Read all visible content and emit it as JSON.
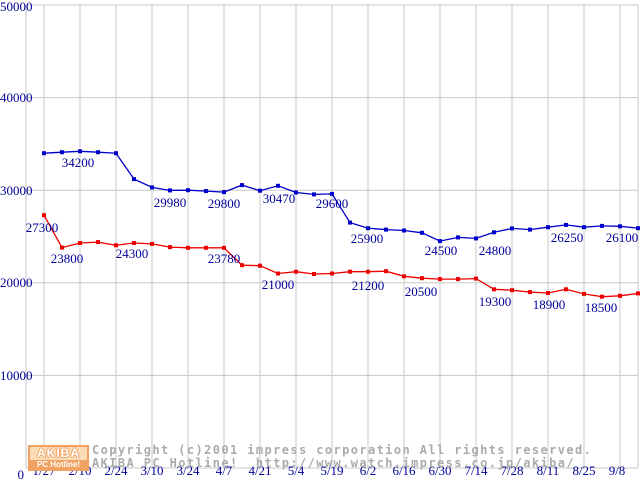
{
  "chart_data": {
    "type": "line",
    "title": "",
    "xlabel": "",
    "ylabel": "",
    "ylim": [
      0,
      50000
    ],
    "y_ticks": [
      0,
      10000,
      20000,
      30000,
      40000,
      50000
    ],
    "grid": true,
    "x_labels": [
      "1/27",
      "2/10",
      "2/24",
      "3/10",
      "3/24",
      "4/7",
      "4/21",
      "5/4",
      "5/19",
      "6/2",
      "6/16",
      "6/30",
      "7/14",
      "7/28",
      "8/11",
      "8/25",
      "9/8"
    ],
    "points_per_label_interval": 2,
    "series": [
      {
        "name": "blue-series",
        "color": "#0000CC",
        "values": [
          34000,
          34100,
          34200,
          34100,
          34000,
          31200,
          30300,
          29980,
          30000,
          29900,
          29800,
          30550,
          29950,
          30470,
          29750,
          29550,
          29600,
          26500,
          25900,
          25750,
          25650,
          25400,
          24500,
          24900,
          24800,
          25450,
          25880,
          25740,
          26000,
          26250,
          26000,
          26150,
          26100,
          25900
        ],
        "annotations": [
          {
            "i": 2,
            "text": "34200",
            "dx": -2,
            "dy": 6
          },
          {
            "i": 7,
            "text": "29980",
            "dx": 0,
            "dy": 7
          },
          {
            "i": 10,
            "text": "29800",
            "dx": 0,
            "dy": 6
          },
          {
            "i": 13,
            "text": "30470",
            "dx": 1,
            "dy": 7
          },
          {
            "i": 16,
            "text": "29600",
            "dx": 0,
            "dy": 4
          },
          {
            "i": 18,
            "text": "25900",
            "dx": -1,
            "dy": 5
          },
          {
            "i": 22,
            "text": "24500",
            "dx": 1,
            "dy": 4
          },
          {
            "i": 24,
            "text": "24800",
            "dx": 19,
            "dy": 7
          },
          {
            "i": 29,
            "text": "26250",
            "dx": 1,
            "dy": 7
          },
          {
            "i": 32,
            "text": "26100",
            "dx": 2,
            "dy": 6
          }
        ]
      },
      {
        "name": "red-series",
        "color": "#EE0000",
        "values": [
          27300,
          23800,
          24300,
          24400,
          24050,
          24300,
          24200,
          23850,
          23780,
          23780,
          23780,
          21900,
          21850,
          21000,
          21200,
          20950,
          21000,
          21200,
          21200,
          21250,
          20700,
          20500,
          20400,
          20400,
          20450,
          19300,
          19200,
          19000,
          18900,
          19300,
          18800,
          18500,
          18600,
          18850
        ],
        "annotations": [
          {
            "i": 0,
            "text": "27300",
            "dx": -2,
            "dy": 7
          },
          {
            "i": 1,
            "text": "23800",
            "dx": 5,
            "dy": 5
          },
          {
            "i": 5,
            "text": "24300",
            "dx": -2,
            "dy": 5
          },
          {
            "i": 10,
            "text": "23780",
            "dx": 0,
            "dy": 5
          },
          {
            "i": 13,
            "text": "21000",
            "dx": 0,
            "dy": 5
          },
          {
            "i": 18,
            "text": "21200",
            "dx": 0,
            "dy": 8
          },
          {
            "i": 21,
            "text": "20500",
            "dx": -1,
            "dy": 8
          },
          {
            "i": 25,
            "text": "19300",
            "dx": 1,
            "dy": 7
          },
          {
            "i": 28,
            "text": "18900",
            "dx": 1,
            "dy": 6
          },
          {
            "i": 31,
            "text": "18500",
            "dx": -1,
            "dy": 5
          }
        ]
      }
    ],
    "grid_color": "#C8C8C8",
    "label_color": "#000099"
  },
  "footer": {
    "logo_top": "AKIBA",
    "logo_bottom": "PC Hotline!",
    "copyright": "Copyright (c)2001 impress corporation All rights reserved.",
    "site": "AKIBA PC Hotline!  http://www.watch.impress.co.jp/akiba/"
  }
}
